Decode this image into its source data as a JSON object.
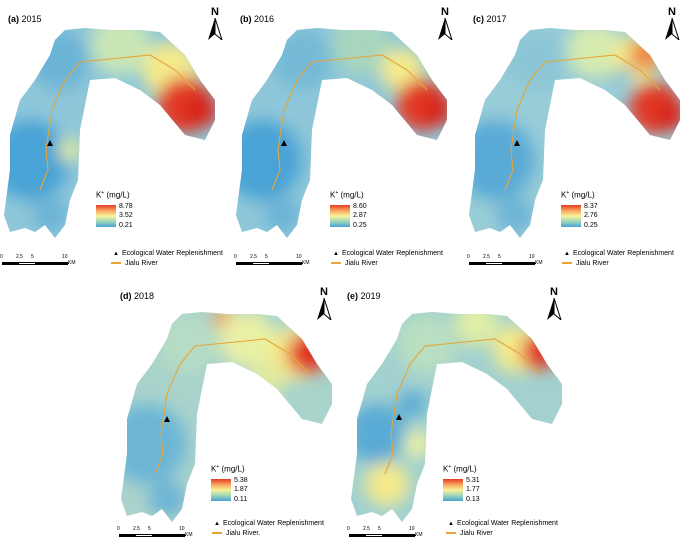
{
  "panels": [
    {
      "title_tag": "(a)",
      "year": "2015",
      "legend_title": "K",
      "legend_unit": "(mg/L)",
      "max": "8.78",
      "mid": "3.52",
      "min": "0.21",
      "river_label": "Jialu River"
    },
    {
      "title_tag": "(b)",
      "year": "2016",
      "legend_title": "K",
      "legend_unit": "(mg/L)",
      "max": "8.60",
      "mid": "2.87",
      "min": "0.25",
      "river_label": "Jialu River"
    },
    {
      "title_tag": "(c)",
      "year": "2017",
      "legend_title": "K",
      "legend_unit": "(mg/L)",
      "max": "8.37",
      "mid": "2.76",
      "min": "0.25",
      "river_label": "Jialu River"
    },
    {
      "title_tag": "(d)",
      "year": "2018",
      "legend_title": "K",
      "legend_unit": "(mg/L)",
      "max": "5.38",
      "mid": "1.87",
      "min": "0.11",
      "river_label": "Jialu River."
    },
    {
      "title_tag": "(e)",
      "year": "2019",
      "legend_title": "K",
      "legend_unit": "(mg/L)",
      "max": "5.31",
      "mid": "1.77",
      "min": "0.13",
      "river_label": "Jialu River"
    }
  ],
  "common": {
    "north": "N",
    "ion_charge": "+",
    "replenishment_label": "Ecological Water Replenishment",
    "scale_ticks": [
      "0",
      "2.5",
      "5",
      "10"
    ],
    "scale_unit": "KM"
  },
  "colors": {
    "high": "#e33a26",
    "mid": "#f9f39a",
    "low": "#49a3d6",
    "river": "#e7a536"
  }
}
